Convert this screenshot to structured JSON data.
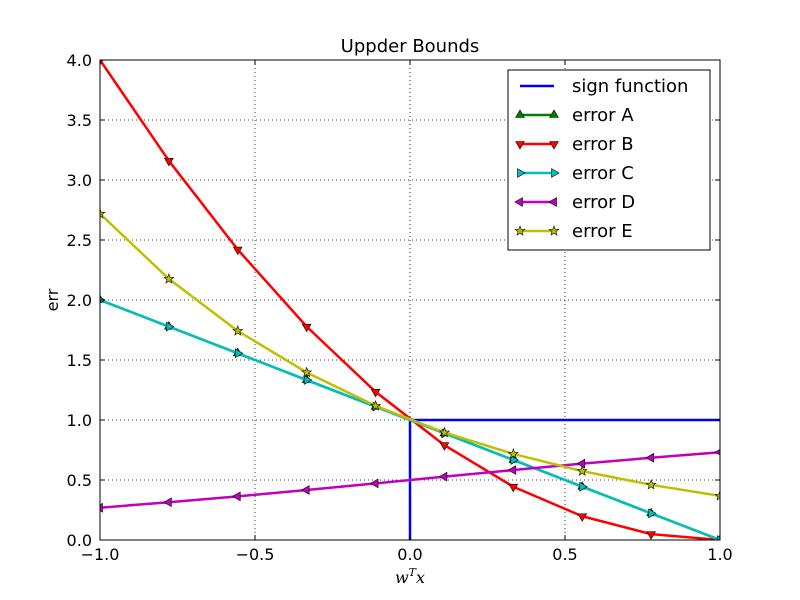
{
  "chart_data": {
    "type": "line",
    "title": "Uppder Bounds",
    "xlabel_base": "w",
    "xlabel_sup": "T",
    "xlabel_tail": "x",
    "ylabel": "err",
    "xlim": [
      -1.0,
      1.0
    ],
    "ylim": [
      0.0,
      4.0
    ],
    "xticks": [
      -1.0,
      -0.5,
      0.0,
      0.5,
      1.0
    ],
    "xtick_labels": [
      "−1.0",
      "−0.5",
      "0.0",
      "0.5",
      "1.0"
    ],
    "yticks": [
      0.0,
      0.5,
      1.0,
      1.5,
      2.0,
      2.5,
      3.0,
      3.5,
      4.0
    ],
    "ytick_labels": [
      "0.0",
      "0.5",
      "1.0",
      "1.5",
      "2.0",
      "2.5",
      "3.0",
      "3.5",
      "4.0"
    ],
    "grid": true,
    "legend_position": "top-right",
    "x": [
      -1.0,
      -0.7778,
      -0.5556,
      -0.3333,
      -0.1111,
      0.1111,
      0.3333,
      0.5556,
      0.7778,
      1.0
    ],
    "series": [
      {
        "name": "sign function",
        "color": "#0000ff",
        "marker": "none",
        "x": [
          0.0,
          0.0,
          1.0
        ],
        "values": [
          0.0,
          1.0,
          1.0
        ]
      },
      {
        "name": "error A",
        "color": "#008000",
        "marker": "triangle-up",
        "values": [
          2.0,
          1.778,
          1.556,
          1.333,
          1.111,
          0.889,
          0.667,
          0.444,
          0.222,
          0.0
        ]
      },
      {
        "name": "error B",
        "color": "#ff0000",
        "marker": "triangle-down",
        "values": [
          4.0,
          3.16,
          2.42,
          1.778,
          1.235,
          0.79,
          0.444,
          0.198,
          0.049,
          0.0
        ]
      },
      {
        "name": "error C",
        "color": "#00bfbf",
        "marker": "triangle-right",
        "values": [
          2.0,
          1.778,
          1.556,
          1.333,
          1.111,
          0.889,
          0.667,
          0.444,
          0.222,
          0.0
        ]
      },
      {
        "name": "error D",
        "color": "#bf00bf",
        "marker": "triangle-left",
        "values": [
          0.269,
          0.315,
          0.364,
          0.417,
          0.472,
          0.528,
          0.583,
          0.636,
          0.685,
          0.731
        ]
      },
      {
        "name": "error E",
        "color": "#bfbf00",
        "marker": "star",
        "values": [
          2.718,
          2.176,
          1.742,
          1.396,
          1.118,
          0.895,
          0.717,
          0.574,
          0.46,
          0.368
        ]
      }
    ]
  }
}
